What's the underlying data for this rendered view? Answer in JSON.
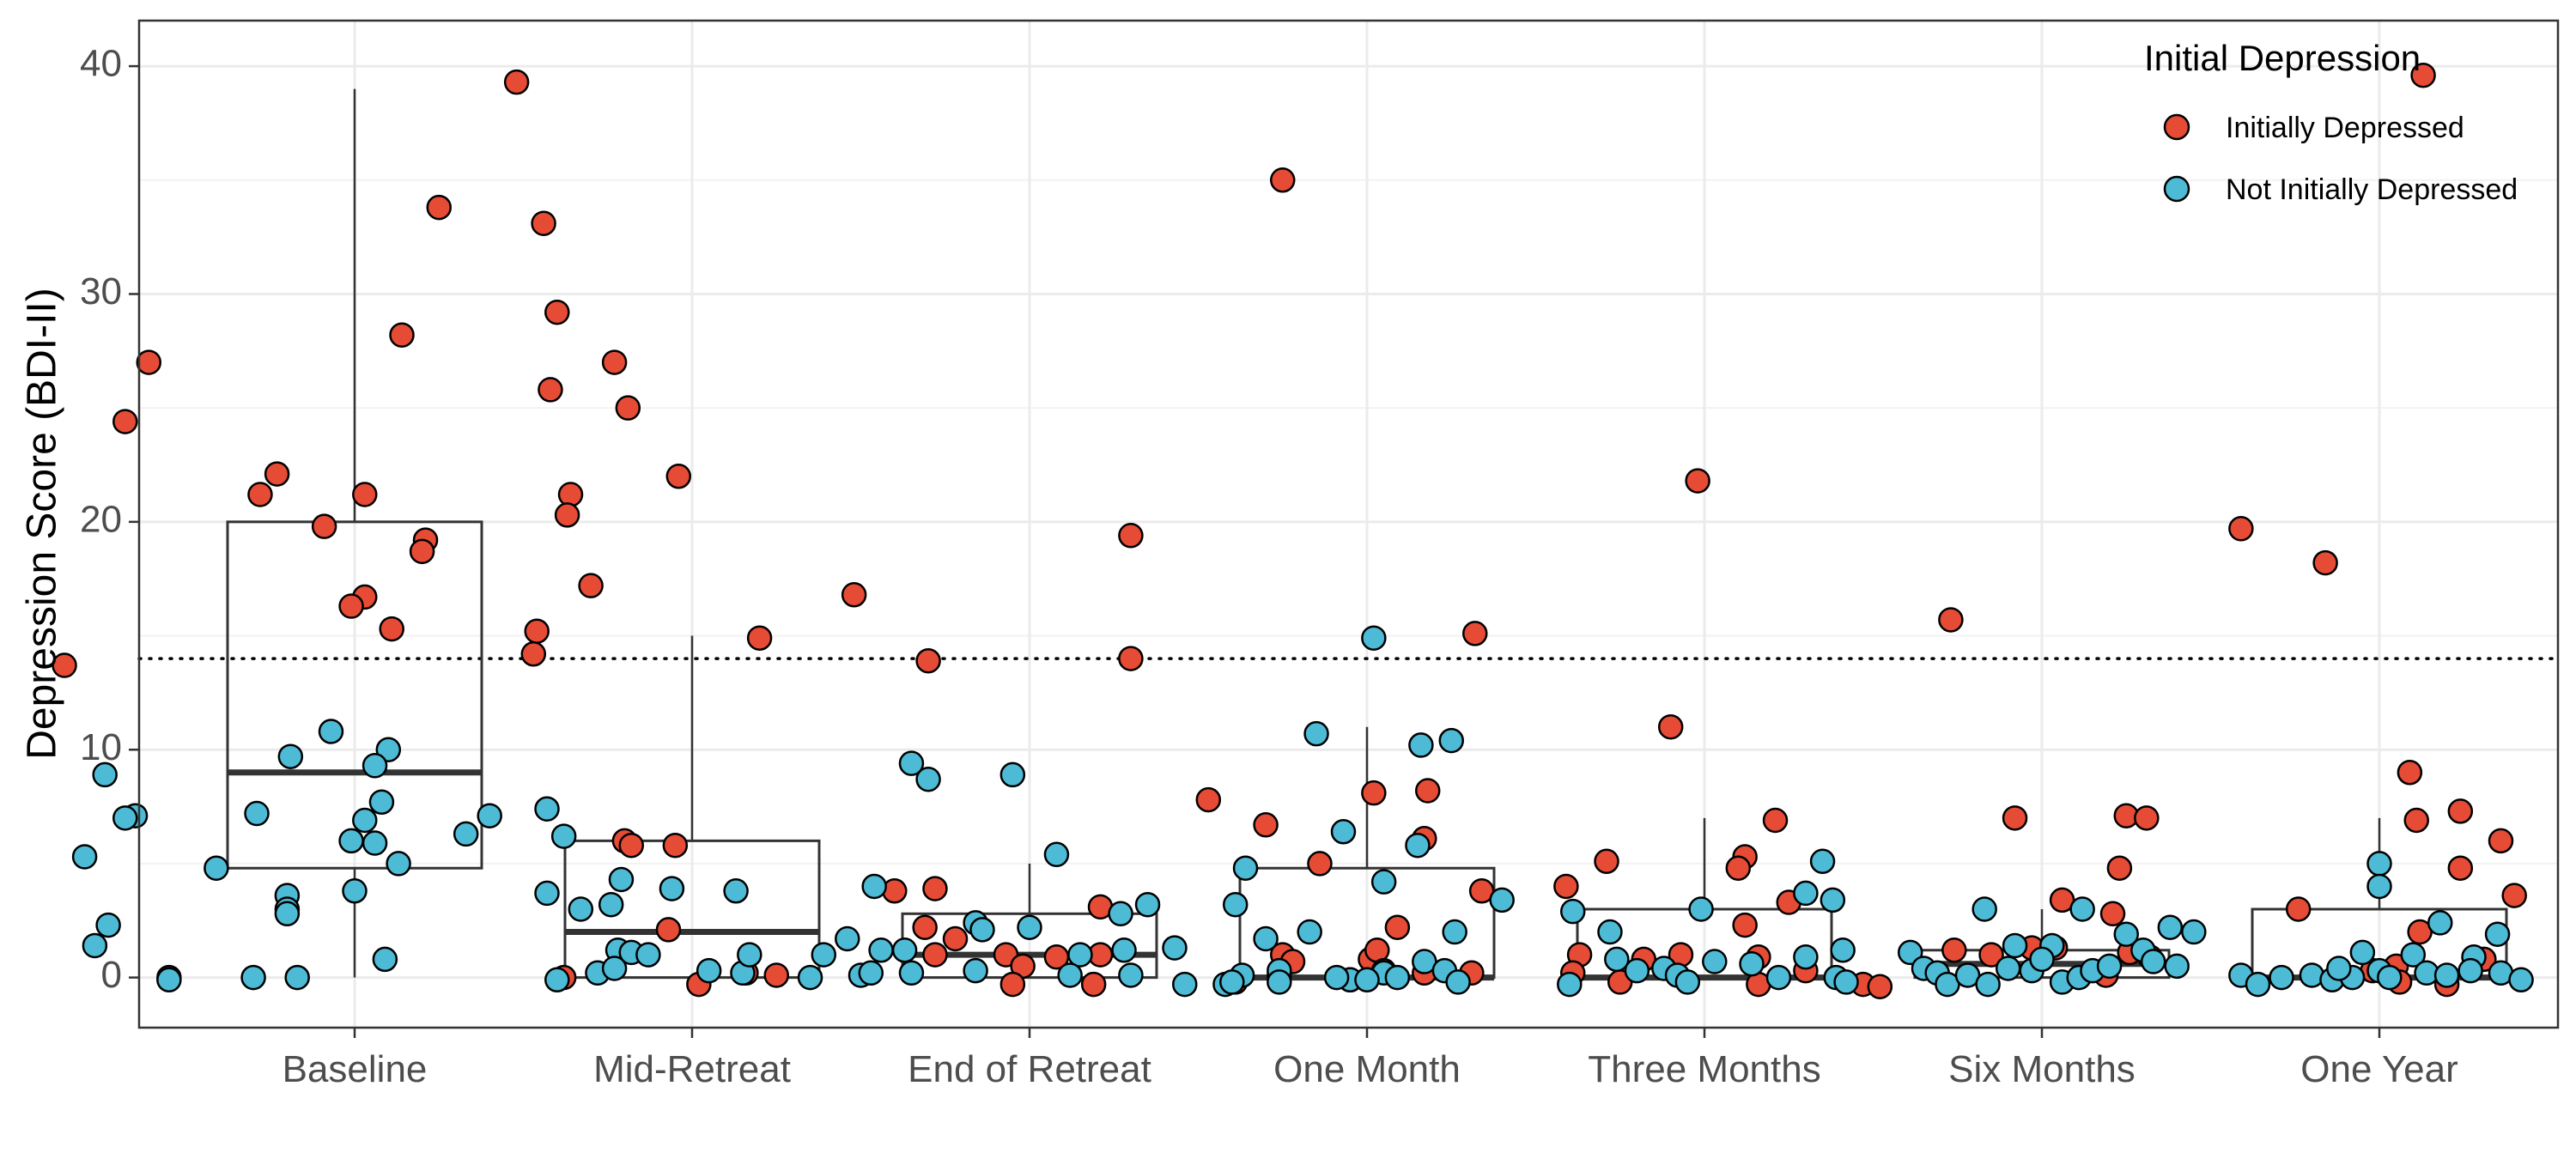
{
  "chart_data": {
    "type": "scatter",
    "subtype": "boxplot-with-jittered-points",
    "ylabel": "Depression Score (BDI-II)",
    "xlabel": "",
    "categories": [
      "Baseline",
      "Mid-Retreat",
      "End of Retreat",
      "One Month",
      "Three Months",
      "Six Months",
      "One Year"
    ],
    "ylim": [
      -2.2,
      42
    ],
    "yticks": [
      0,
      10,
      20,
      30,
      40
    ],
    "threshold_line": 14,
    "grid": true,
    "legend": {
      "title": "Initial Depression",
      "placement": "top-right",
      "entries": [
        {
          "label": "Initially Depressed",
          "color": "#E64B35"
        },
        {
          "label": "Not Initially Depressed",
          "color": "#4DBBD5"
        }
      ]
    },
    "boxes": [
      {
        "q1": 4.8,
        "median": 9,
        "q3": 20,
        "whisker_low": 0,
        "whisker_high": 39
      },
      {
        "q1": 0,
        "median": 2,
        "q3": 6,
        "whisker_low": 0,
        "whisker_high": 15
      },
      {
        "q1": 0,
        "median": 1,
        "q3": 2.8,
        "whisker_low": 0,
        "whisker_high": 5
      },
      {
        "q1": 0,
        "median": 0,
        "q3": 4.8,
        "whisker_low": 0,
        "whisker_high": 11
      },
      {
        "q1": 0,
        "median": 0,
        "q3": 3,
        "whisker_low": 0,
        "whisker_high": 7
      },
      {
        "q1": 0,
        "median": 0.6,
        "q3": 1.2,
        "whisker_low": 0,
        "whisker_high": 3
      },
      {
        "q1": 0,
        "median": 0,
        "q3": 3,
        "whisker_low": 0,
        "whisker_high": 7
      }
    ],
    "series": [
      {
        "name": "Initially Depressed",
        "color": "#E64B35",
        "points": [
          [
            0.48,
            39.3
          ],
          [
            0.25,
            33.8
          ],
          [
            0.56,
            33.1
          ],
          [
            0.14,
            28.2
          ],
          [
            0.6,
            29.2
          ],
          [
            0.58,
            25.8
          ],
          [
            0.77,
            27.0
          ],
          [
            -0.61,
            27.0
          ],
          [
            -0.68,
            24.4
          ],
          [
            -0.23,
            22.1
          ],
          [
            -0.28,
            21.2
          ],
          [
            0.03,
            21.2
          ],
          [
            0.64,
            21.2
          ],
          [
            0.63,
            20.3
          ],
          [
            -0.09,
            19.8
          ],
          [
            0.21,
            19.2
          ],
          [
            0.2,
            18.7
          ],
          [
            0.7,
            17.2
          ],
          [
            0.03,
            16.7
          ],
          [
            -0.01,
            16.3
          ],
          [
            0.11,
            15.3
          ],
          [
            0.54,
            15.2
          ],
          [
            0.53,
            14.2
          ],
          [
            -0.86,
            13.7
          ],
          [
            0.81,
            25.0
          ],
          [
            0.96,
            22.0
          ],
          [
            1.2,
            14.9
          ],
          [
            1.48,
            16.8
          ],
          [
            1.7,
            13.9
          ],
          [
            0.8,
            6.0
          ],
          [
            0.82,
            5.8
          ],
          [
            0.95,
            5.8
          ],
          [
            0.93,
            2.1
          ],
          [
            0.62,
            0.0
          ],
          [
            1.02,
            -0.3
          ],
          [
            1.16,
            0.2
          ],
          [
            1.25,
            0.1
          ],
          [
            2.3,
            19.4
          ],
          [
            2.3,
            14.0
          ],
          [
            2.53,
            7.8
          ],
          [
            2.21,
            3.1
          ],
          [
            1.6,
            3.8
          ],
          [
            1.72,
            3.9
          ],
          [
            1.69,
            2.2
          ],
          [
            1.72,
            1.0
          ],
          [
            1.78,
            1.7
          ],
          [
            1.93,
            1.0
          ],
          [
            2.08,
            0.9
          ],
          [
            1.98,
            0.5
          ],
          [
            2.21,
            1.0
          ],
          [
            1.95,
            -0.3
          ],
          [
            2.19,
            -0.3
          ],
          [
            2.75,
            35.0
          ],
          [
            3.32,
            15.1
          ],
          [
            3.02,
            8.1
          ],
          [
            3.18,
            8.2
          ],
          [
            3.17,
            6.1
          ],
          [
            2.7,
            6.7
          ],
          [
            2.86,
            5.0
          ],
          [
            3.34,
            3.8
          ],
          [
            3.09,
            2.2
          ],
          [
            2.75,
            1.0
          ],
          [
            2.78,
            0.7
          ],
          [
            3.01,
            0.8
          ],
          [
            3.03,
            1.2
          ],
          [
            3.05,
            0.3
          ],
          [
            3.17,
            0.2
          ],
          [
            2.61,
            -0.2
          ],
          [
            2.95,
            -0.1
          ],
          [
            3.31,
            0.2
          ],
          [
            3.98,
            21.8
          ],
          [
            3.9,
            11.0
          ],
          [
            3.71,
            5.1
          ],
          [
            4.21,
            6.9
          ],
          [
            4.12,
            5.3
          ],
          [
            4.1,
            4.8
          ],
          [
            3.59,
            4.0
          ],
          [
            4.12,
            2.3
          ],
          [
            4.25,
            3.3
          ],
          [
            3.63,
            1.0
          ],
          [
            3.82,
            0.8
          ],
          [
            3.93,
            1.0
          ],
          [
            4.16,
            0.9
          ],
          [
            3.61,
            0.2
          ],
          [
            3.75,
            -0.2
          ],
          [
            4.16,
            -0.3
          ],
          [
            4.3,
            0.3
          ],
          [
            4.73,
            15.7
          ],
          [
            4.92,
            7.0
          ],
          [
            5.25,
            7.1
          ],
          [
            5.31,
            7.0
          ],
          [
            5.23,
            4.8
          ],
          [
            5.06,
            3.4
          ],
          [
            5.21,
            2.8
          ],
          [
            4.97,
            1.3
          ],
          [
            5.04,
            1.3
          ],
          [
            4.74,
            1.2
          ],
          [
            4.85,
            1.0
          ],
          [
            5.26,
            1.1
          ],
          [
            5.32,
            0.9
          ],
          [
            4.47,
            -0.3
          ],
          [
            4.52,
            -0.4
          ],
          [
            5.19,
            0.1
          ],
          [
            5.59,
            19.7
          ],
          [
            5.84,
            18.2
          ],
          [
            6.13,
            39.6
          ],
          [
            6.09,
            9.0
          ],
          [
            6.24,
            7.3
          ],
          [
            6.11,
            6.9
          ],
          [
            6.36,
            6.0
          ],
          [
            6.24,
            4.8
          ],
          [
            6.4,
            3.6
          ],
          [
            5.76,
            3.0
          ],
          [
            6.12,
            2.0
          ],
          [
            6.31,
            0.8
          ],
          [
            5.98,
            0.3
          ],
          [
            6.05,
            0.5
          ],
          [
            6.06,
            -0.2
          ],
          [
            6.2,
            -0.3
          ]
        ]
      },
      {
        "name": "Not Initially Depressed",
        "color": "#4DBBD5",
        "points": [
          [
            -0.07,
            10.8
          ],
          [
            0.1,
            10.0
          ],
          [
            -0.19,
            9.7
          ],
          [
            0.06,
            9.3
          ],
          [
            -0.74,
            8.9
          ],
          [
            -0.29,
            7.2
          ],
          [
            -0.65,
            7.1
          ],
          [
            -0.68,
            7.0
          ],
          [
            0.08,
            7.7
          ],
          [
            0.03,
            6.9
          ],
          [
            0.4,
            7.1
          ],
          [
            0.57,
            7.4
          ],
          [
            0.33,
            6.3
          ],
          [
            -0.01,
            6.0
          ],
          [
            0.06,
            5.9
          ],
          [
            -0.8,
            5.3
          ],
          [
            0.13,
            5.0
          ],
          [
            -0.41,
            4.8
          ],
          [
            -0.2,
            3.6
          ],
          [
            0.0,
            3.8
          ],
          [
            0.57,
            3.7
          ],
          [
            0.76,
            3.2
          ],
          [
            -0.2,
            3.0
          ],
          [
            -0.2,
            2.8
          ],
          [
            -0.73,
            2.3
          ],
          [
            -0.77,
            1.4
          ],
          [
            0.09,
            0.8
          ],
          [
            -0.55,
            0.0
          ],
          [
            -0.55,
            -0.1
          ],
          [
            -0.3,
            0.0
          ],
          [
            -0.17,
            0.0
          ],
          [
            0.6,
            -0.1
          ],
          [
            0.62,
            6.2
          ],
          [
            0.67,
            3.0
          ],
          [
            0.79,
            4.3
          ],
          [
            0.94,
            3.9
          ],
          [
            1.13,
            3.8
          ],
          [
            1.54,
            4.0
          ],
          [
            1.7,
            8.7
          ],
          [
            0.78,
            1.2
          ],
          [
            0.82,
            1.1
          ],
          [
            0.87,
            1.0
          ],
          [
            0.72,
            0.2
          ],
          [
            0.77,
            0.4
          ],
          [
            1.05,
            0.3
          ],
          [
            1.15,
            0.2
          ],
          [
            1.17,
            1.0
          ],
          [
            1.39,
            1.0
          ],
          [
            1.46,
            1.7
          ],
          [
            1.56,
            1.2
          ],
          [
            1.63,
            1.2
          ],
          [
            1.5,
            0.1
          ],
          [
            1.53,
            0.2
          ],
          [
            1.65,
            0.2
          ],
          [
            1.35,
            0.0
          ],
          [
            1.65,
            9.4
          ],
          [
            1.95,
            8.9
          ],
          [
            2.08,
            5.4
          ],
          [
            2.35,
            3.2
          ],
          [
            2.27,
            2.8
          ],
          [
            2.61,
            3.2
          ],
          [
            1.84,
            2.4
          ],
          [
            1.86,
            2.1
          ],
          [
            2.0,
            2.2
          ],
          [
            2.15,
            1.0
          ],
          [
            2.28,
            1.2
          ],
          [
            2.43,
            1.3
          ],
          [
            2.7,
            1.7
          ],
          [
            1.84,
            0.3
          ],
          [
            2.12,
            0.1
          ],
          [
            2.3,
            0.1
          ],
          [
            2.46,
            -0.3
          ],
          [
            2.58,
            -0.3
          ],
          [
            2.63,
            0.1
          ],
          [
            2.74,
            0.1
          ],
          [
            3.02,
            14.9
          ],
          [
            2.85,
            10.7
          ],
          [
            3.16,
            10.2
          ],
          [
            3.25,
            10.4
          ],
          [
            3.15,
            5.8
          ],
          [
            3.05,
            4.2
          ],
          [
            2.93,
            6.4
          ],
          [
            2.64,
            4.8
          ],
          [
            2.83,
            2.0
          ],
          [
            3.26,
            2.0
          ],
          [
            3.4,
            3.4
          ],
          [
            2.74,
            0.3
          ],
          [
            2.95,
            -0.1
          ],
          [
            3.05,
            0.2
          ],
          [
            3.09,
            0.0
          ],
          [
            3.17,
            0.7
          ],
          [
            3.23,
            0.3
          ],
          [
            3.27,
            -0.2
          ],
          [
            2.91,
            0.0
          ],
          [
            3.0,
            -0.1
          ],
          [
            2.6,
            -0.2
          ],
          [
            2.74,
            -0.2
          ],
          [
            3.61,
            2.9
          ],
          [
            3.72,
            2.0
          ],
          [
            3.99,
            3.0
          ],
          [
            4.3,
            3.7
          ],
          [
            4.38,
            3.4
          ],
          [
            4.35,
            5.1
          ],
          [
            3.74,
            0.8
          ],
          [
            3.8,
            0.3
          ],
          [
            3.88,
            0.4
          ],
          [
            3.92,
            0.1
          ],
          [
            3.95,
            -0.2
          ],
          [
            4.03,
            0.7
          ],
          [
            4.14,
            0.6
          ],
          [
            4.22,
            0.0
          ],
          [
            4.3,
            0.9
          ],
          [
            4.39,
            0.0
          ],
          [
            4.41,
            1.2
          ],
          [
            3.6,
            -0.3
          ],
          [
            4.42,
            -0.2
          ],
          [
            4.83,
            3.0
          ],
          [
            4.92,
            1.4
          ],
          [
            5.03,
            1.4
          ],
          [
            5.25,
            1.9
          ],
          [
            5.3,
            1.2
          ],
          [
            5.38,
            2.2
          ],
          [
            5.45,
            2.0
          ],
          [
            4.61,
            1.1
          ],
          [
            4.65,
            0.4
          ],
          [
            4.69,
            0.2
          ],
          [
            4.72,
            -0.3
          ],
          [
            4.78,
            0.1
          ],
          [
            4.84,
            -0.3
          ],
          [
            4.9,
            0.4
          ],
          [
            4.97,
            0.3
          ],
          [
            5.0,
            0.8
          ],
          [
            5.06,
            -0.2
          ],
          [
            5.11,
            0.0
          ],
          [
            5.15,
            0.3
          ],
          [
            5.2,
            0.5
          ],
          [
            5.33,
            0.7
          ],
          [
            5.4,
            0.5
          ],
          [
            5.12,
            3.0
          ],
          [
            6.0,
            5.0
          ],
          [
            6.0,
            4.0
          ],
          [
            5.95,
            1.1
          ],
          [
            6.1,
            1.0
          ],
          [
            6.18,
            2.4
          ],
          [
            6.28,
            0.9
          ],
          [
            6.35,
            1.9
          ],
          [
            5.59,
            0.1
          ],
          [
            5.64,
            -0.3
          ],
          [
            5.71,
            0.0
          ],
          [
            5.8,
            0.1
          ],
          [
            5.86,
            -0.1
          ],
          [
            5.92,
            0.0
          ],
          [
            6.0,
            0.3
          ],
          [
            6.03,
            0.0
          ],
          [
            6.14,
            0.2
          ],
          [
            6.2,
            0.1
          ],
          [
            6.27,
            0.3
          ],
          [
            6.36,
            0.2
          ],
          [
            6.42,
            -0.1
          ],
          [
            5.88,
            0.4
          ]
        ]
      }
    ]
  }
}
